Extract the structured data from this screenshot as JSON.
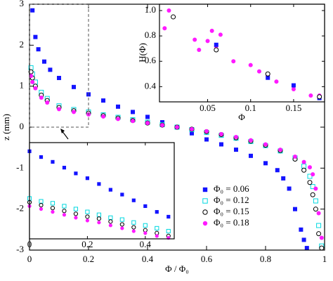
{
  "chart_data": [
    {
      "type": "scatter",
      "xlabel": "Φ / Φ₀",
      "ylabel": "z (mm)",
      "xlim": [
        0,
        1
      ],
      "ylim": [
        -3,
        3
      ],
      "xticks": [
        0,
        0.2,
        0.4,
        0.6,
        0.8,
        1
      ],
      "yticks": [
        -3,
        -2,
        -1,
        0,
        1,
        2,
        3
      ],
      "legend": "lower right",
      "series": [
        {
          "name": "Φ₀ = 0.06",
          "color": "#1414ff",
          "marker": "square",
          "filled": true,
          "x": [
            0.01,
            0.02,
            0.03,
            0.05,
            0.07,
            0.1,
            0.15,
            0.2,
            0.25,
            0.3,
            0.35,
            0.4,
            0.45,
            0.5,
            0.55,
            0.6,
            0.65,
            0.7,
            0.75,
            0.8,
            0.84,
            0.86,
            0.88,
            0.9,
            0.92,
            0.93,
            0.94
          ],
          "values": [
            2.85,
            2.2,
            1.9,
            1.6,
            1.4,
            1.2,
            0.98,
            0.8,
            0.65,
            0.5,
            0.37,
            0.25,
            0.12,
            0.0,
            -0.15,
            -0.3,
            -0.42,
            -0.55,
            -0.7,
            -0.88,
            -1.05,
            -1.25,
            -1.5,
            -2.0,
            -2.5,
            -2.75,
            -2.95
          ]
        },
        {
          "name": "Φ₀ = 0.12",
          "color": "#00d8e0",
          "marker": "square",
          "filled": false,
          "x": [
            0.005,
            0.01,
            0.02,
            0.04,
            0.06,
            0.1,
            0.15,
            0.2,
            0.25,
            0.3,
            0.35,
            0.4,
            0.45,
            0.5,
            0.55,
            0.6,
            0.65,
            0.7,
            0.75,
            0.8,
            0.85,
            0.9,
            0.93,
            0.95,
            0.96,
            0.97,
            0.98,
            0.99
          ],
          "values": [
            1.45,
            1.3,
            1.1,
            0.85,
            0.7,
            0.52,
            0.43,
            0.37,
            0.3,
            0.24,
            0.18,
            0.12,
            0.06,
            0.0,
            -0.06,
            -0.13,
            -0.2,
            -0.27,
            -0.35,
            -0.45,
            -0.58,
            -0.75,
            -0.95,
            -1.2,
            -1.45,
            -1.8,
            -2.4,
            -2.9
          ]
        },
        {
          "name": "Φ₀ = 0.15",
          "color": "#000000",
          "marker": "circle",
          "filled": false,
          "x": [
            0.005,
            0.01,
            0.02,
            0.04,
            0.06,
            0.1,
            0.15,
            0.2,
            0.25,
            0.3,
            0.35,
            0.4,
            0.45,
            0.5,
            0.55,
            0.6,
            0.65,
            0.7,
            0.75,
            0.8,
            0.85,
            0.9,
            0.93,
            0.95,
            0.96,
            0.97,
            0.98,
            0.99
          ],
          "values": [
            1.35,
            1.2,
            1.0,
            0.78,
            0.65,
            0.48,
            0.4,
            0.34,
            0.28,
            0.22,
            0.16,
            0.1,
            0.05,
            0.0,
            -0.05,
            -0.11,
            -0.18,
            -0.26,
            -0.34,
            -0.44,
            -0.57,
            -0.78,
            -1.05,
            -1.35,
            -1.65,
            -2.0,
            -2.6,
            -2.95
          ]
        },
        {
          "name": "Φ₀ = 0.18",
          "color": "#ff1aff",
          "marker": "circle",
          "filled": true,
          "x": [
            0.005,
            0.01,
            0.02,
            0.04,
            0.06,
            0.1,
            0.15,
            0.2,
            0.25,
            0.3,
            0.35,
            0.4,
            0.45,
            0.5,
            0.55,
            0.6,
            0.65,
            0.7,
            0.75,
            0.8,
            0.85,
            0.9,
            0.93,
            0.95,
            0.96,
            0.97,
            0.98,
            0.99
          ],
          "values": [
            1.25,
            1.1,
            0.95,
            0.72,
            0.6,
            0.44,
            0.37,
            0.31,
            0.26,
            0.2,
            0.15,
            0.1,
            0.05,
            0.0,
            -0.05,
            -0.1,
            -0.17,
            -0.24,
            -0.32,
            -0.42,
            -0.55,
            -0.72,
            -0.85,
            -0.98,
            -1.15,
            -1.5,
            -2.1,
            -2.7
          ]
        }
      ]
    },
    {
      "type": "scatter",
      "xlabel": "Φ",
      "ylabel": "H(Φ)",
      "xlim": [
        -0.006,
        0.186
      ],
      "ylim": [
        0.28,
        1.05
      ],
      "xticks": [
        0.05,
        0.1,
        0.15
      ],
      "yticks": [
        0.4,
        0.6,
        0.8,
        {
          "value": 1,
          "label": "1.0"
        }
      ],
      "series": [
        {
          "color": "#ff1aff",
          "marker": "circle",
          "filled": true,
          "x": [
            0.0,
            0.005,
            0.01,
            0.035,
            0.04,
            0.05,
            0.055,
            0.06,
            0.065,
            0.08,
            0.1,
            0.11,
            0.12,
            0.13,
            0.15,
            0.17,
            0.18
          ],
          "values": [
            0.86,
            1.0,
            0.95,
            0.77,
            0.69,
            0.76,
            0.84,
            0.72,
            0.81,
            0.6,
            0.57,
            0.52,
            0.49,
            0.44,
            0.38,
            0.33,
            0.33
          ]
        },
        {
          "color": "#1414ff",
          "marker": "square",
          "filled": true,
          "x": [
            0.06,
            0.12,
            0.15,
            0.18
          ],
          "values": [
            0.73,
            0.47,
            0.41,
            0.31
          ]
        },
        {
          "color": "#000000",
          "marker": "circle",
          "filled": false,
          "x": [
            0.01,
            0.06,
            0.12,
            0.18
          ],
          "values": [
            0.95,
            0.69,
            0.5,
            0.32
          ]
        }
      ]
    },
    {
      "type": "scatter",
      "xlim": [
        0,
        0.5
      ],
      "ylim": [
        0,
        1
      ],
      "xticks": [
        0,
        0.2,
        0.4
      ],
      "series": [
        {
          "color": "#1414ff",
          "marker": "square",
          "filled": true,
          "x": [
            0,
            0.04,
            0.08,
            0.12,
            0.16,
            0.2,
            0.24,
            0.28,
            0.32,
            0.36,
            0.4,
            0.44,
            0.48
          ],
          "values": [
            0.91,
            0.85,
            0.8,
            0.74,
            0.68,
            0.63,
            0.57,
            0.51,
            0.46,
            0.4,
            0.34,
            0.28,
            0.23
          ]
        },
        {
          "color": "#00d8e0",
          "marker": "square",
          "filled": false,
          "x": [
            0,
            0.04,
            0.08,
            0.12,
            0.16,
            0.2,
            0.24,
            0.28,
            0.32,
            0.36,
            0.4,
            0.44,
            0.48
          ],
          "values": [
            0.42,
            0.39,
            0.37,
            0.34,
            0.31,
            0.28,
            0.25,
            0.22,
            0.2,
            0.17,
            0.14,
            0.11,
            0.08
          ]
        },
        {
          "color": "#000000",
          "marker": "circle",
          "filled": false,
          "x": [
            0,
            0.04,
            0.08,
            0.12,
            0.16,
            0.2,
            0.24,
            0.28,
            0.32,
            0.36,
            0.4,
            0.44,
            0.48
          ],
          "values": [
            0.38,
            0.35,
            0.32,
            0.29,
            0.26,
            0.23,
            0.21,
            0.18,
            0.15,
            0.12,
            0.09,
            0.06,
            0.03
          ]
        },
        {
          "color": "#ff1aff",
          "marker": "circle",
          "filled": true,
          "x": [
            0,
            0.04,
            0.08,
            0.12,
            0.16,
            0.2,
            0.24,
            0.28,
            0.32,
            0.36,
            0.4,
            0.44,
            0.48
          ],
          "values": [
            0.34,
            0.31,
            0.28,
            0.25,
            0.22,
            0.19,
            0.17,
            0.14,
            0.11,
            0.08,
            0.06,
            0.03,
            0.01
          ]
        }
      ]
    }
  ]
}
